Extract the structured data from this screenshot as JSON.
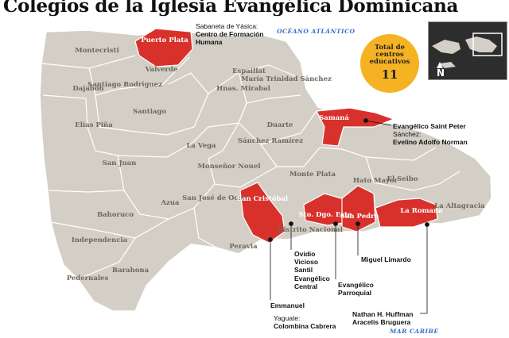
{
  "title": "Colegios de la Iglesia Evangélica Dominicana",
  "seas": {
    "north": "OCÉANO ATLÁNTICO",
    "south": "MAR CARIBE"
  },
  "badge": {
    "label": "Total de centros educativos",
    "value": "11"
  },
  "compass": "N",
  "colors": {
    "land": "#d4cfc6",
    "highlight": "#d8312b",
    "border": "#ffffff",
    "sea_label": "#3a6fc9",
    "badge": "#f5b323"
  },
  "provinces": {
    "montecristi": "Montecristi",
    "valverde": "Valverde",
    "dajabon": "Dajabón",
    "santiago_rodriguez": "Santiago Rodríguez",
    "santiago": "Santiago",
    "espaillat": "Espaillat",
    "hermanas_mirabal": "Hnas. Mirabal",
    "maria_trinidad_sanchez": "María Trinidad Sánchez",
    "duarte": "Duarte",
    "elias_pina": "Elías Piña",
    "la_vega": "La Vega",
    "sanchez_ramirez": "Sánchez Ramírez",
    "san_juan": "San Juan",
    "monsenor_nouel": "Monseñor Nouel",
    "monte_plata": "Monte Plata",
    "el_seibo": "El Seibo",
    "hato_mayor": "Hato Mayor",
    "azua": "Azua",
    "san_jose_de_ocoa": "San José de Ocoa",
    "la_altagracia": "La Altagracia",
    "bahoruco": "Bahoruco",
    "independencia": "Independencia",
    "barahona": "Barahona",
    "pedernales": "Pedernales",
    "peravia": "Peravia",
    "distrito_nacional": "Distrito Nacional"
  },
  "highlighted_provinces": {
    "puerto_plata": "Puerto Plata",
    "samana": "Samaná",
    "san_cristobal": "San Cristóbal",
    "santo_domingo_este": "Sto. Dgo. Este",
    "san_pedro": "San Pedro",
    "la_romana": "La Romana"
  },
  "schools": {
    "puerto_plata": {
      "location": "Sabaneta de Yásica:",
      "name": "Centro de Formación Humana"
    },
    "samana_1": "Evangélico Saint Peter",
    "samana_2": {
      "location": "Sánchez:",
      "name": "Evelino Adolfo Norman"
    },
    "ovidio": "Ovidio Vicioso Santil",
    "evangelico_central": "Evangélico Central",
    "evangelico_parroquial": "Evangélico Parroquial",
    "miguel_limardo": "Miguel Limardo",
    "emmanuel": "Emmanuel",
    "yaguate": {
      "location": "Yaguate:",
      "name": "Colombina Cabrera"
    },
    "nathan": "Nathan H. Huffman",
    "aracelis": "Aracelis Bruguera"
  }
}
